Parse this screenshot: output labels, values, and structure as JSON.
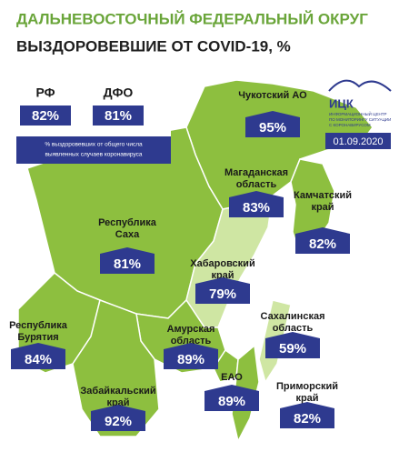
{
  "header": {
    "title": "ДАЛЬНЕВОСТОЧНЫЙ ФЕДЕРАЛЬНЫЙ ОКРУГ",
    "subtitle": "ВЫЗДОРОВЕВШИЕ ОТ COVID-19, %"
  },
  "summary": {
    "items": [
      {
        "label": "РФ",
        "value": "82%"
      },
      {
        "label": "ДФО",
        "value": "81%"
      }
    ],
    "note": [
      "% выздоровевших от общего числа",
      "выявленных случаев коронавируса"
    ]
  },
  "logo": {
    "name": "ИЦК",
    "caption": [
      "ИНФОРМАЦИОННЫЙ ЦЕНТР",
      "ПО МОНИТОРИНГУ СИТУАЦИИ",
      "С КОРОНАВИРУСОМ"
    ],
    "date": "01.09.2020"
  },
  "regions": [
    {
      "name": [
        "Чукотский АО"
      ],
      "value": "95%"
    },
    {
      "name": [
        "Магаданская",
        "область"
      ],
      "value": "83%"
    },
    {
      "name": [
        "Камчатский",
        "край"
      ],
      "value": "82%"
    },
    {
      "name": [
        "Республика",
        "Саха"
      ],
      "value": "81%"
    },
    {
      "name": [
        "Хабаровский",
        "край"
      ],
      "value": "79%"
    },
    {
      "name": [
        "Республика",
        "Бурятия"
      ],
      "value": "84%"
    },
    {
      "name": [
        "Амурская",
        "область"
      ],
      "value": "89%"
    },
    {
      "name": [
        "Сахалинская",
        "область"
      ],
      "value": "59%"
    },
    {
      "name": [
        "Забайкальский",
        "край"
      ],
      "value": "92%"
    },
    {
      "name": [
        "ЕАО"
      ],
      "value": "89%"
    },
    {
      "name": [
        "Приморский",
        "край"
      ],
      "value": "82%"
    }
  ]
}
